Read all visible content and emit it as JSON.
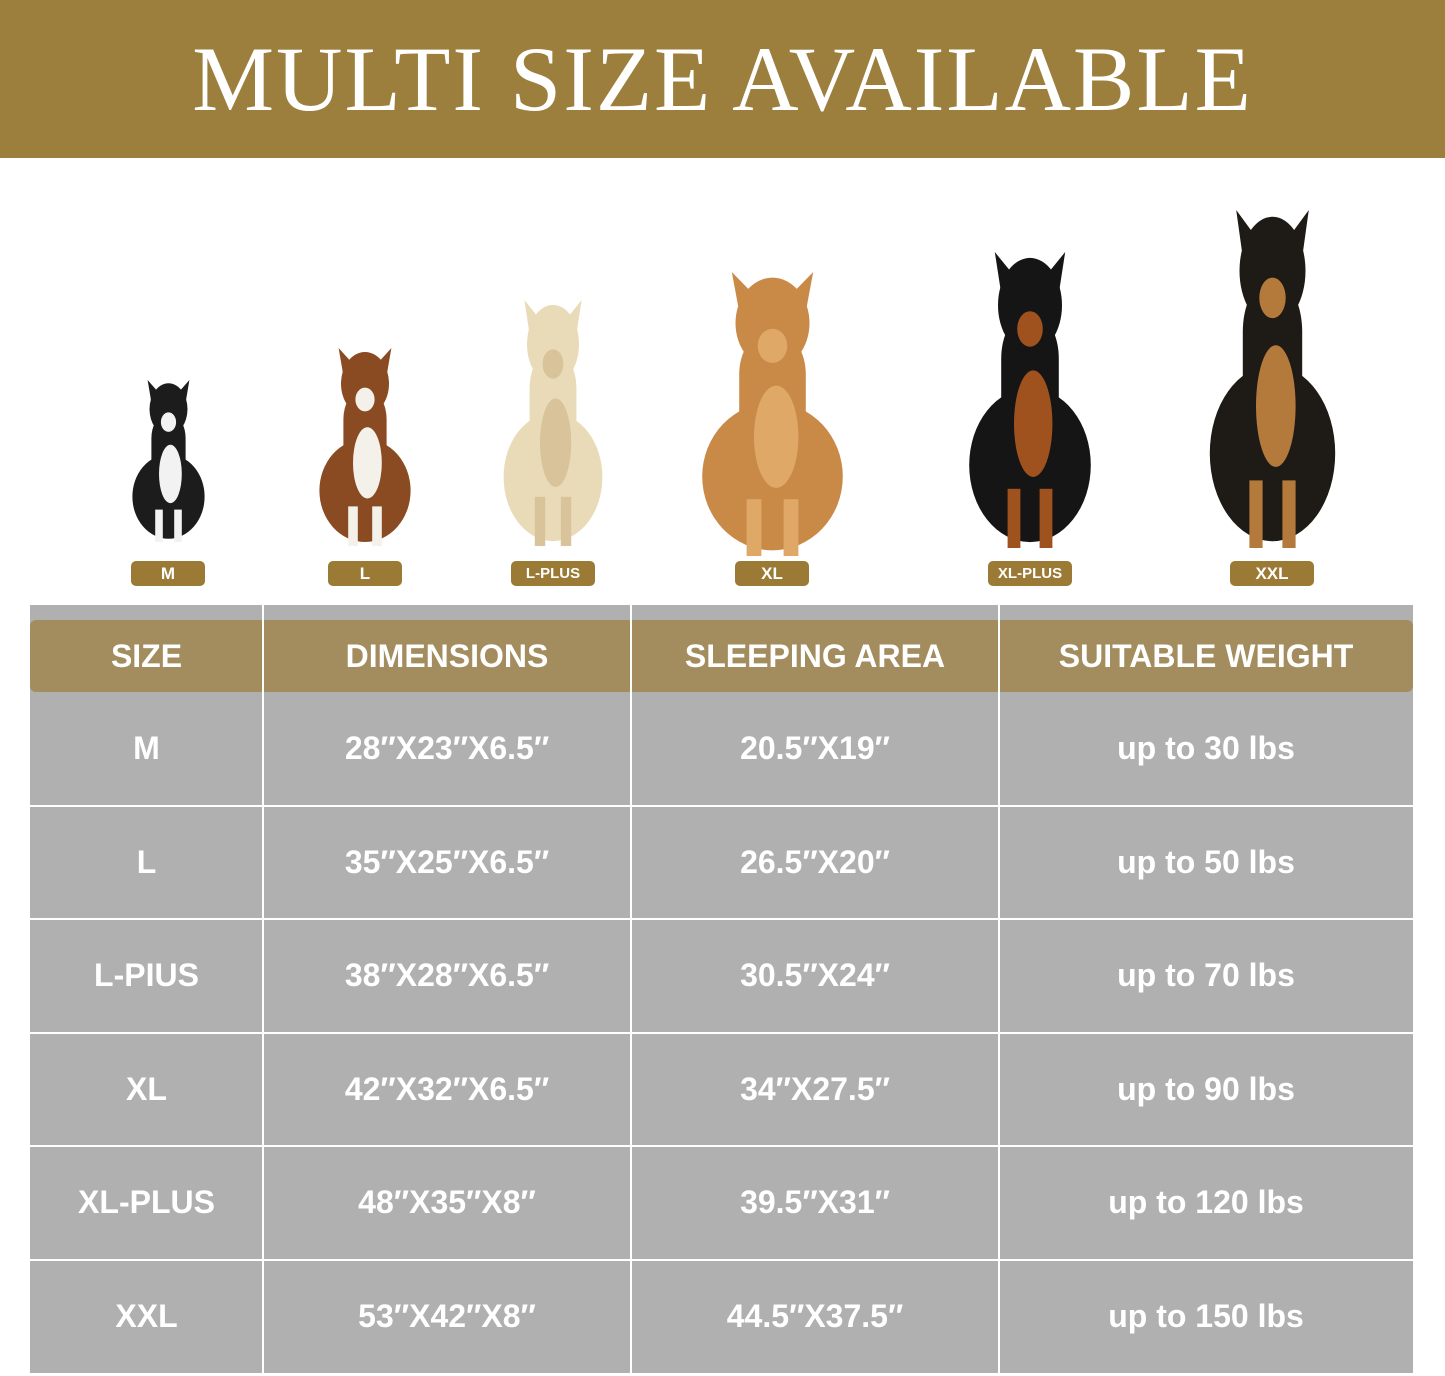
{
  "banner": {
    "title": "MULTI SIZE AVAILABLE"
  },
  "colors": {
    "banner": "#9c7f3c",
    "header": "#a38c5d",
    "badge": "#9a7a35",
    "cell": "#b0b0b0"
  },
  "dogs": [
    {
      "badge": "M",
      "icon": "french-bulldog-icon"
    },
    {
      "badge": "L",
      "icon": "beagle-icon"
    },
    {
      "badge": "L-PLUS",
      "icon": "labrador-icon"
    },
    {
      "badge": "XL",
      "icon": "golden-retriever-icon"
    },
    {
      "badge": "XL-PLUS",
      "icon": "doberman-icon"
    },
    {
      "badge": "XXL",
      "icon": "german-shepherd-icon"
    }
  ],
  "table": {
    "headers": [
      "SIZE",
      "DIMENSIONS",
      "SLEEPING AREA",
      "SUITABLE WEIGHT"
    ],
    "rows": [
      [
        "M",
        "28″X23″X6.5″",
        "20.5″X19″",
        "up to 30 lbs"
      ],
      [
        "L",
        "35″X25″X6.5″",
        "26.5″X20″",
        "up to 50 lbs"
      ],
      [
        "L-PIUS",
        "38″X28″X6.5″",
        "30.5″X24″",
        "up to 70 lbs"
      ],
      [
        "XL",
        "42″X32″X6.5″",
        "34″X27.5″",
        "up to 90 lbs"
      ],
      [
        "XL-PLUS",
        "48″X35″X8″",
        "39.5″X31″",
        "up to 120 lbs"
      ],
      [
        "XXL",
        "53″X42″X8″",
        "44.5″X37.5″",
        "up to 150 lbs"
      ]
    ]
  }
}
